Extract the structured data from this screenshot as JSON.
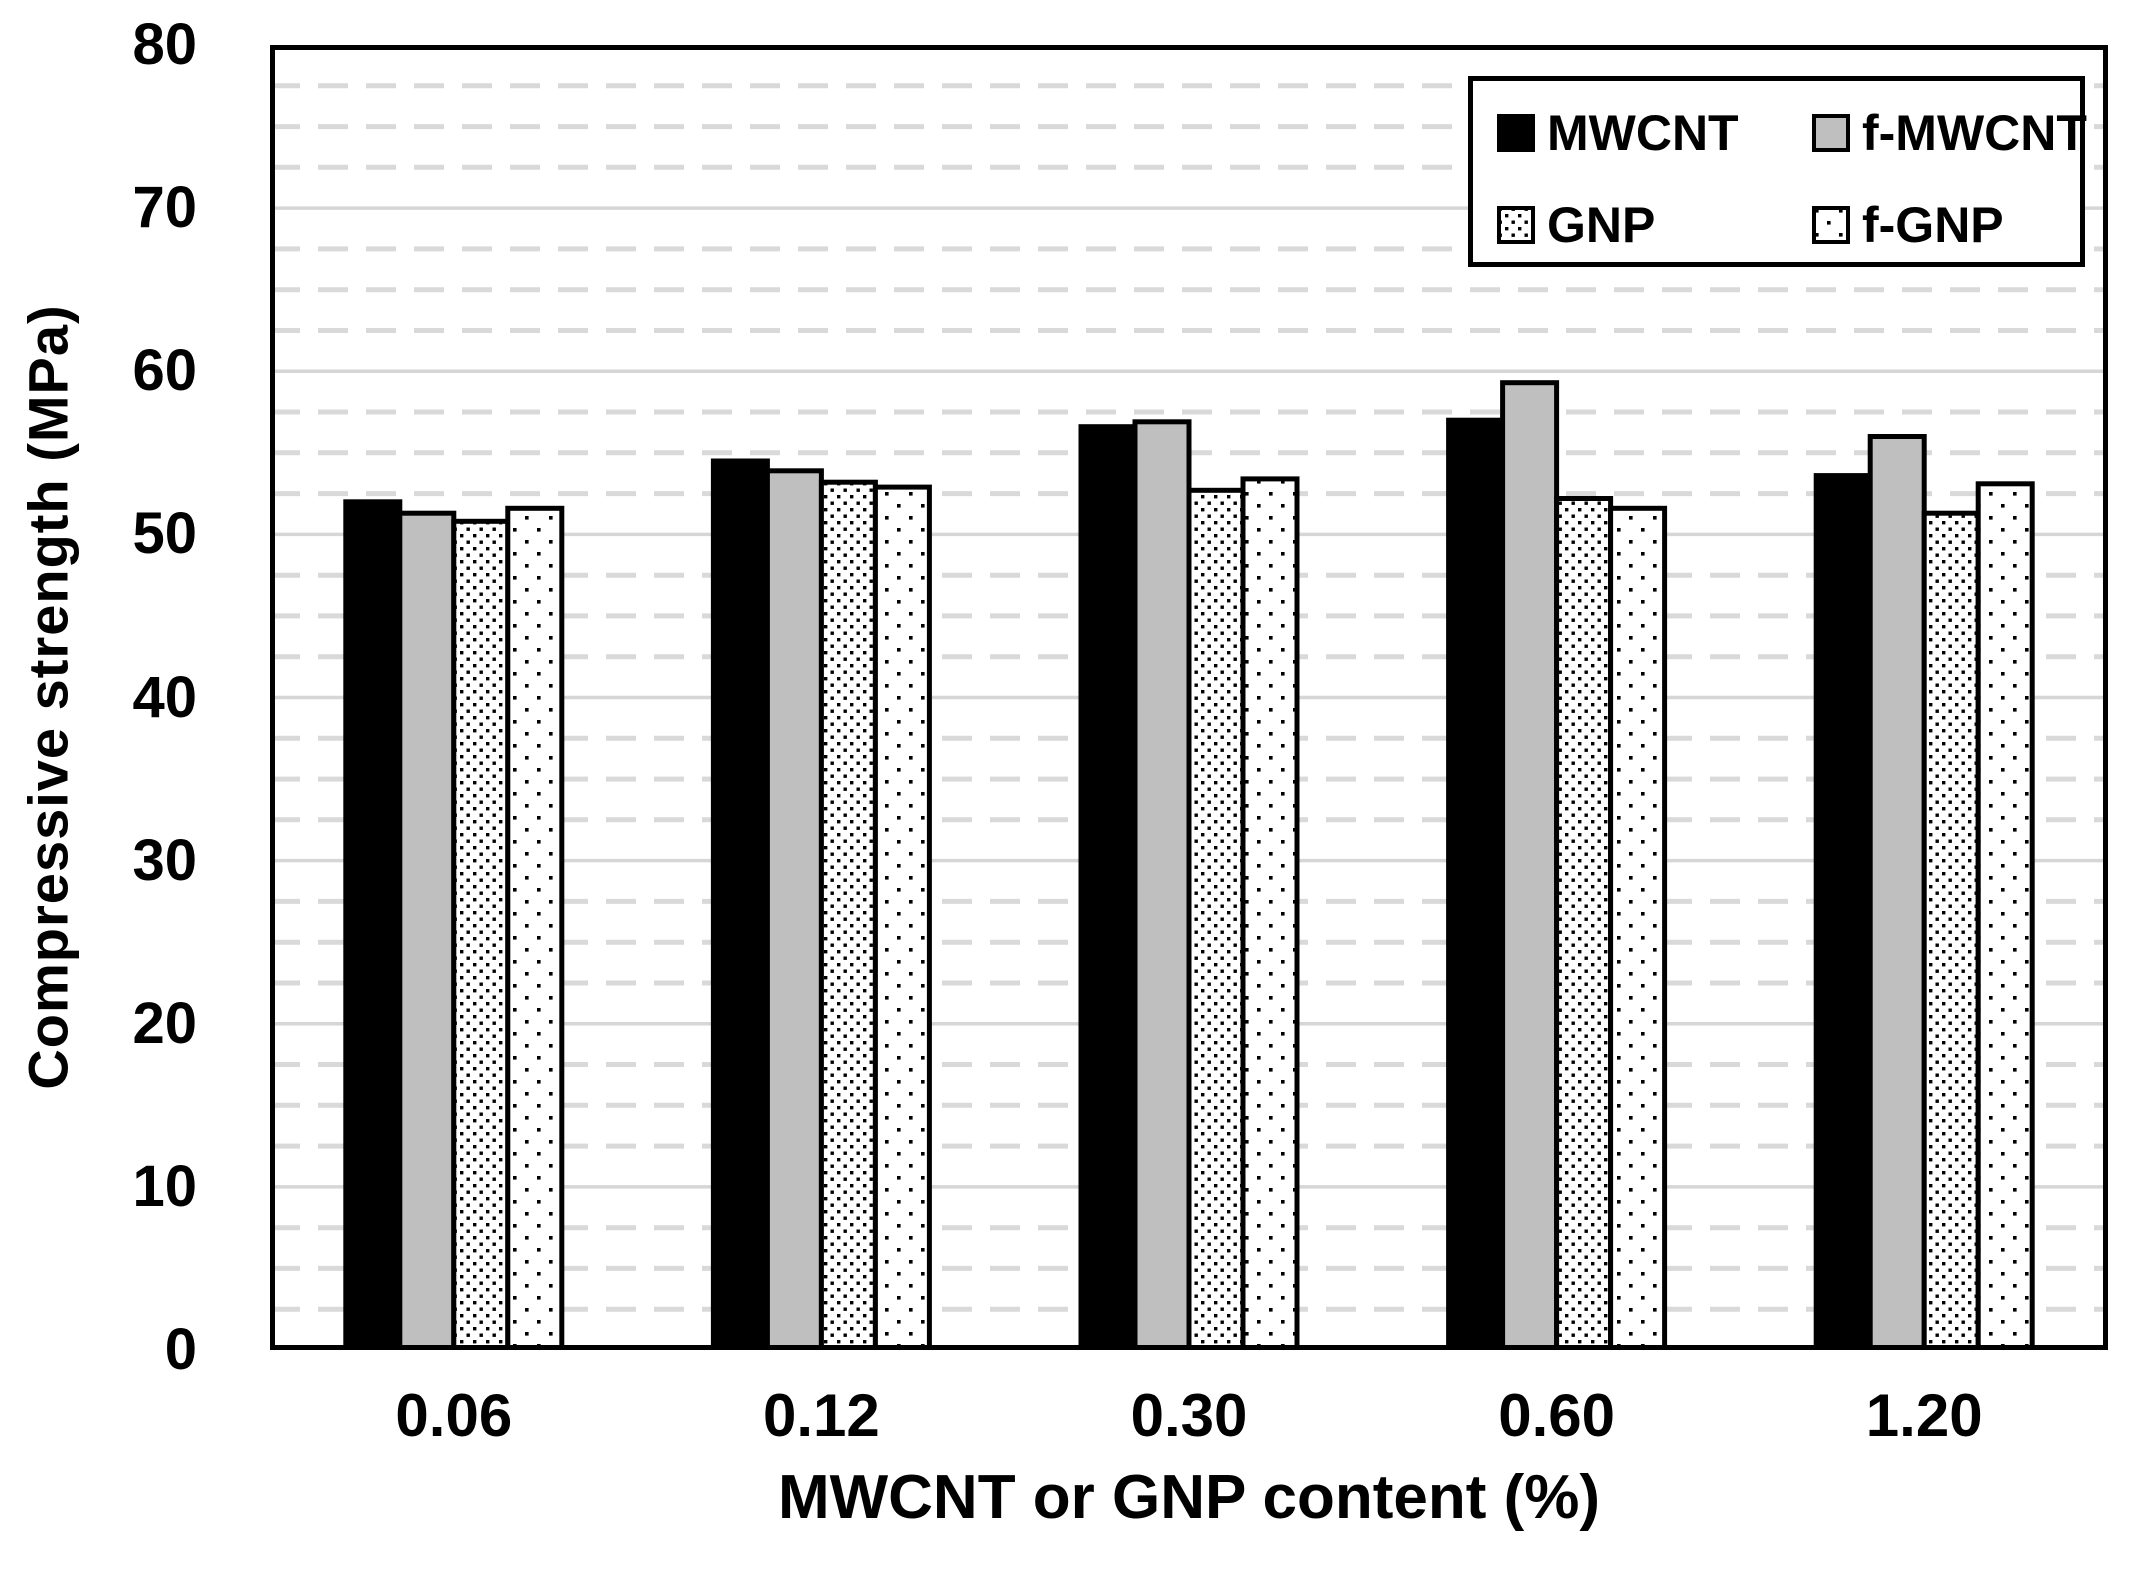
{
  "chart_data": {
    "type": "bar",
    "title": "",
    "xlabel": "MWCNT or GNP content (%)",
    "ylabel": "Compressive strength (MPa)",
    "categories": [
      "0.06",
      "0.12",
      "0.30",
      "0.60",
      "1.20"
    ],
    "series": [
      {
        "name": "MWCNT",
        "style": "solid-black",
        "values": [
          52.0,
          54.5,
          56.6,
          57.0,
          53.6
        ]
      },
      {
        "name": "f-MWCNT",
        "style": "solid-gray",
        "values": [
          51.3,
          53.9,
          56.9,
          59.3,
          56.0
        ]
      },
      {
        "name": "GNP",
        "style": "dense-dots",
        "values": [
          50.8,
          53.2,
          52.7,
          52.2,
          51.3
        ]
      },
      {
        "name": "f-GNP",
        "style": "sparse-dots",
        "values": [
          51.6,
          52.9,
          53.4,
          51.6,
          53.1
        ]
      }
    ],
    "ylim": [
      0,
      80
    ],
    "yticks": [
      0,
      10,
      20,
      30,
      40,
      50,
      60,
      70,
      80
    ],
    "ytick_step": 10,
    "minor_tick_step": 2.5,
    "grid": {
      "major": "solid",
      "minor": "dashed",
      "on": true
    },
    "legend_position": "top-right-inside"
  },
  "colors": {
    "bar_black": "#000000",
    "bar_gray": "#bfbfbf",
    "pattern_dot": "#000000",
    "pattern_bg": "#ffffff",
    "grid_minor": "#d9d9d9",
    "grid_major": "#d6d6d6",
    "axis": "#000000",
    "background": "#ffffff"
  }
}
